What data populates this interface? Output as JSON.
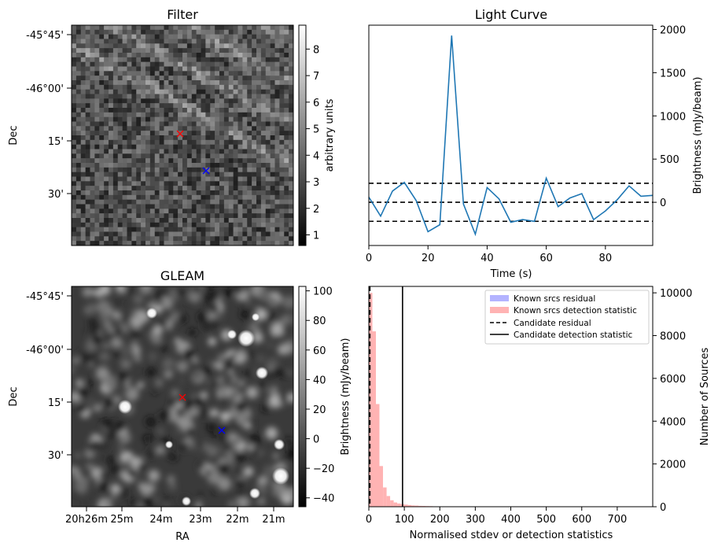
{
  "chart_data": [
    {
      "type": "heatmap",
      "title": "Filter",
      "xlabel": "",
      "ylabel": "Dec",
      "yticks": [
        "-45°45'",
        "-46°00'",
        "15'",
        "30'"
      ],
      "colorbar": {
        "label": "arbitrary units",
        "ticks": [
          "1",
          "2",
          "3",
          "4",
          "5",
          "6",
          "7",
          "8"
        ],
        "range": [
          0.6,
          8.9
        ]
      },
      "markers": [
        {
          "symbol": "x",
          "color": "#ff0000"
        },
        {
          "symbol": "x",
          "color": "#0000ff"
        }
      ]
    },
    {
      "type": "line",
      "title": "Light Curve",
      "xlabel": "Time (s)",
      "ylabel": "Brightness (mJy/beam)",
      "xlim": [
        0,
        96
      ],
      "ylim": [
        -500,
        2050
      ],
      "xticks": [
        "0",
        "20",
        "40",
        "60",
        "80"
      ],
      "yticks": [
        "0",
        "500",
        "1000",
        "1500",
        "2000"
      ],
      "series": [
        {
          "x": [
            0,
            4,
            8,
            12,
            16,
            20,
            24,
            28,
            32,
            36,
            40,
            44,
            48,
            52,
            56,
            60,
            64,
            68,
            72,
            76,
            80,
            84,
            88,
            92,
            96
          ],
          "y": [
            60,
            -160,
            130,
            230,
            20,
            -340,
            -260,
            1930,
            -20,
            -370,
            170,
            40,
            -230,
            -200,
            -220,
            280,
            -50,
            50,
            100,
            -200,
            -100,
            30,
            190,
            70,
            80
          ],
          "color": "#1f77b4"
        }
      ],
      "hlines": [
        {
          "y": 220,
          "style": "dashed"
        },
        {
          "y": 0,
          "style": "dashed"
        },
        {
          "y": -220,
          "style": "dashed"
        }
      ]
    },
    {
      "type": "heatmap",
      "title": "GLEAM",
      "xlabel": "RA",
      "ylabel": "Dec",
      "xticks": [
        "20h26m",
        "25m",
        "24m",
        "23m",
        "22m",
        "21m"
      ],
      "yticks": [
        "-45°45'",
        "-46°00'",
        "15'",
        "30'"
      ],
      "colorbar": {
        "label": "Brightness (mJy/beam)",
        "ticks": [
          "100",
          "80",
          "60",
          "40",
          "20",
          "0",
          "−20",
          "−40"
        ],
        "range": [
          -46,
          103
        ]
      },
      "markers": [
        {
          "symbol": "x",
          "color": "#ff0000"
        },
        {
          "symbol": "x",
          "color": "#0000ff"
        }
      ]
    },
    {
      "type": "bar",
      "title": "",
      "xlabel": "Normalised stdev or detection statistics",
      "ylabel": "Number of Sources",
      "xlim": [
        0,
        800
      ],
      "ylim": [
        0,
        10300
      ],
      "xticks": [
        "0",
        "100",
        "200",
        "300",
        "400",
        "500",
        "600",
        "700"
      ],
      "yticks": [
        "0",
        "2000",
        "4000",
        "6000",
        "8000",
        "10000"
      ],
      "series": [
        {
          "name": "Known srcs detection statistic",
          "color": "#ff9999",
          "bin_width": 10,
          "bins": [
            0,
            10,
            20,
            30,
            40,
            50,
            60,
            70,
            80,
            90,
            100,
            110,
            120,
            130,
            140,
            150,
            160,
            170,
            180,
            190,
            200,
            210,
            220,
            230,
            240,
            250,
            300,
            350,
            400,
            450,
            500,
            550,
            600,
            650,
            700,
            750
          ],
          "values": [
            10000,
            8200,
            4800,
            1900,
            900,
            500,
            300,
            200,
            150,
            120,
            100,
            80,
            60,
            50,
            40,
            35,
            30,
            25,
            20,
            20,
            18,
            15,
            12,
            10,
            10,
            8,
            8,
            6,
            6,
            5,
            5,
            4,
            4,
            3,
            3,
            3
          ]
        },
        {
          "name": "Known srcs residual",
          "color": "#9999ff",
          "values": []
        }
      ],
      "vlines": [
        {
          "name": "Candidate residual",
          "x": 3,
          "style": "dashed"
        },
        {
          "name": "Candidate detection statistic",
          "x": 95,
          "style": "solid"
        }
      ],
      "legend": {
        "position": "top-right",
        "entries": [
          "Known srcs residual",
          "Known srcs detection statistic",
          "Candidate residual",
          "Candidate detection statistic"
        ]
      }
    }
  ]
}
